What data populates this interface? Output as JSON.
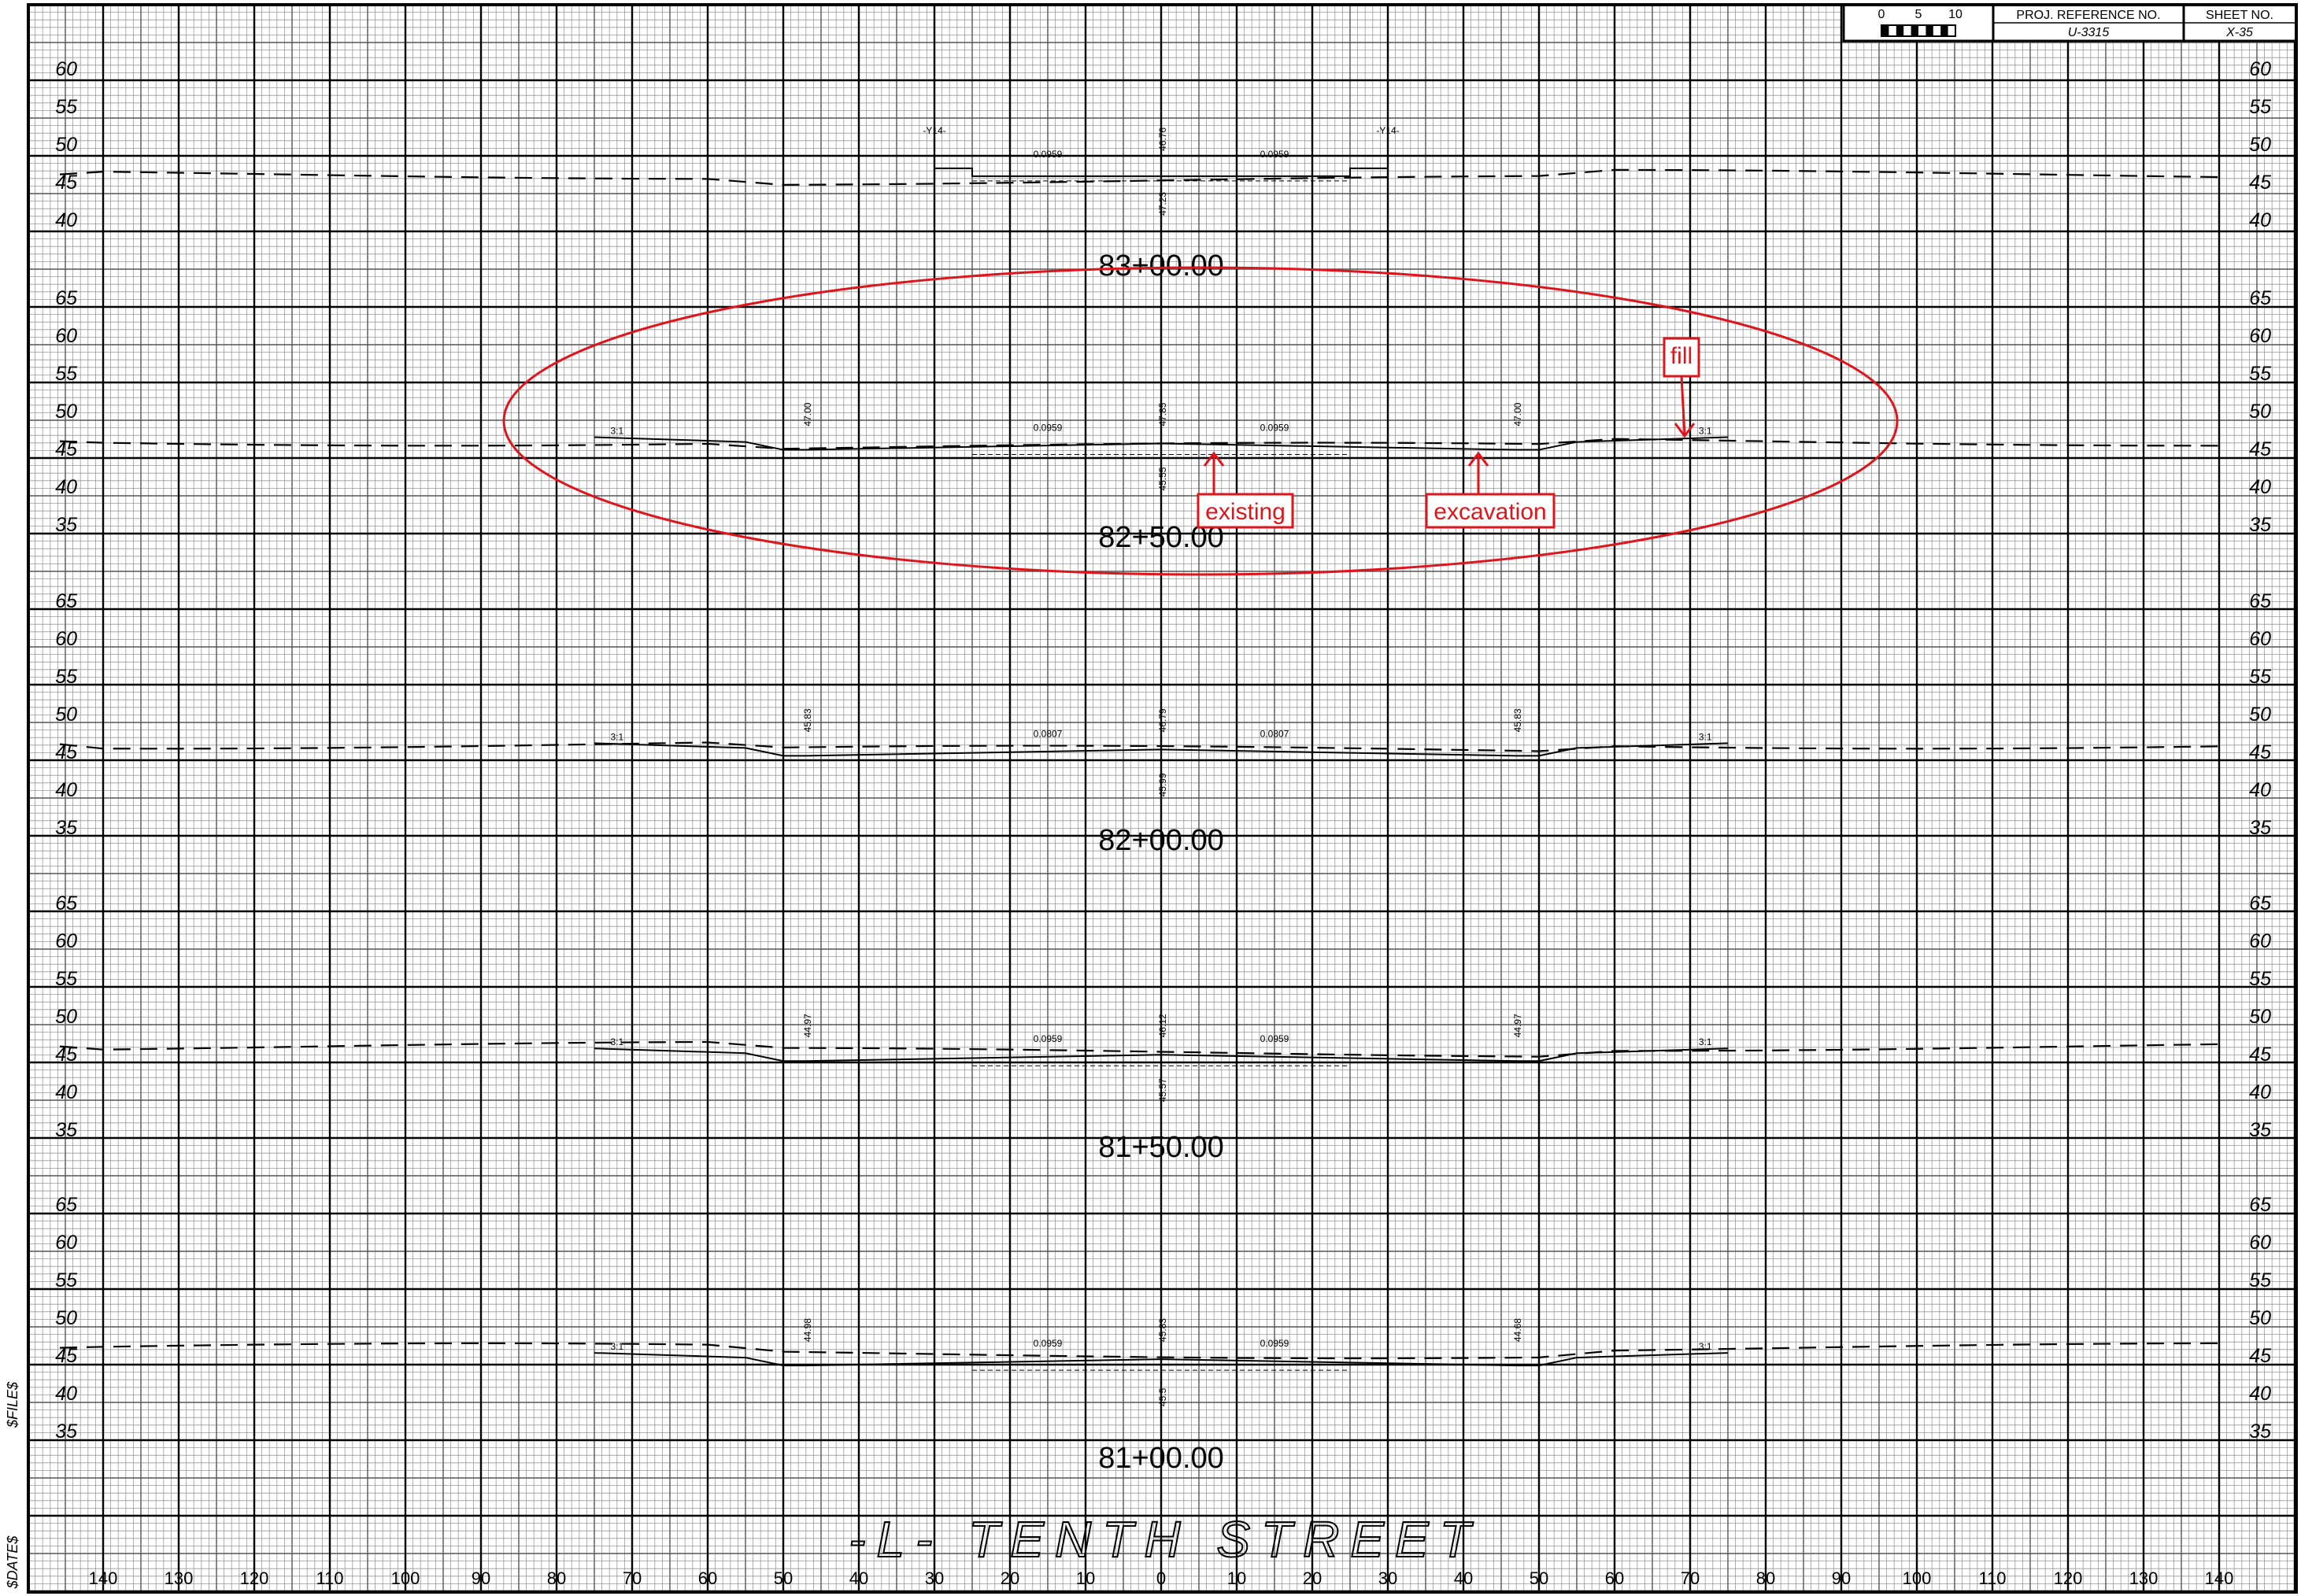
{
  "title_block": {
    "scale_ticks": [
      "0",
      "5",
      "10"
    ],
    "proj_ref_label": "PROJ. REFERENCE NO.",
    "proj_ref_value": "U-3315",
    "sheet_no_label": "SHEET NO.",
    "sheet_no_value": "X-35"
  },
  "sheet_title": "-L- TENTH STREET",
  "margin_labels": [
    "$FILE$",
    "$DATE$"
  ],
  "x_axis": {
    "ticks": [
      "140",
      "130",
      "120",
      "110",
      "100",
      "90",
      "80",
      "70",
      "60",
      "50",
      "40",
      "30",
      "20",
      "10",
      "0",
      "10",
      "20",
      "30",
      "40",
      "50",
      "60",
      "70",
      "80",
      "90",
      "100",
      "110",
      "120",
      "130",
      "140"
    ]
  },
  "sections": [
    {
      "station": "83+00.00",
      "elevations": [
        "60",
        "55",
        "50",
        "45",
        "40"
      ],
      "grade_labels": [
        "0.0959",
        "0.0959"
      ],
      "offset_labels": [
        "46.76",
        "47.23"
      ],
      "marker_labels": [
        "-Y14-",
        "-Y14-"
      ],
      "slope_labels": []
    },
    {
      "station": "82+50.00",
      "elevations": [
        "65",
        "60",
        "55",
        "50",
        "45",
        "40",
        "35"
      ],
      "grade_labels": [
        "0.0959",
        "0.0959"
      ],
      "offset_labels": [
        "47.00",
        "47.85",
        "45.55",
        "47.00"
      ],
      "marker_labels": [],
      "slope_labels": [
        "3:1",
        "3:1"
      ]
    },
    {
      "station": "82+00.00",
      "elevations": [
        "65",
        "60",
        "55",
        "50",
        "45",
        "40",
        "35"
      ],
      "grade_labels": [
        "0.0807",
        "0.0807"
      ],
      "offset_labels": [
        "45.83",
        "46.79",
        "45.99",
        "45.83"
      ],
      "marker_labels": [],
      "slope_labels": [
        "3:1",
        "3:1"
      ]
    },
    {
      "station": "81+50.00",
      "elevations": [
        "65",
        "60",
        "55",
        "50",
        "45",
        "40",
        "35"
      ],
      "grade_labels": [
        "0.0959",
        "0.0959"
      ],
      "offset_labels": [
        "44.97",
        "46.12",
        "45.57",
        "44.97"
      ],
      "marker_labels": [],
      "slope_labels": [
        "3:1",
        "3:1"
      ]
    },
    {
      "station": "81+00.00",
      "elevations": [
        "65",
        "60",
        "55",
        "50",
        "45",
        "40",
        "35"
      ],
      "grade_labels": [
        "0.0959",
        "0.0959"
      ],
      "offset_labels": [
        "44.98",
        "45.83",
        "45.5",
        "44.68"
      ],
      "marker_labels": [],
      "slope_labels": [
        "3:1",
        "3:1"
      ]
    }
  ],
  "annotations": {
    "fill": "fill",
    "existing": "existing",
    "excavation": "excavation",
    "color": "#e0151b"
  }
}
